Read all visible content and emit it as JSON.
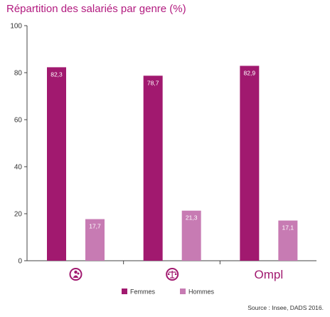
{
  "title": "Répartition des salariés par genre (%)",
  "source": "Source : Insee, DADS 2016.",
  "logo_text": "Ompl",
  "icons": [
    "people-circle-icon",
    "scales-of-justice-icon",
    "ompl-logo"
  ],
  "colors": {
    "femmes": "#a1196f",
    "hommes": "#c77bb3",
    "title": "#b21a7f"
  },
  "chart_data": {
    "type": "bar",
    "title": "Répartition des salariés par genre (%)",
    "categories": [
      "",
      "",
      ""
    ],
    "category_icons": [
      "people-circle-icon",
      "scales-of-justice-icon",
      "ompl-logo"
    ],
    "series": [
      {
        "name": "Femmes",
        "values": [
          82.3,
          78.7,
          82.9
        ],
        "labels": [
          "82,3",
          "78,7",
          "82,9"
        ]
      },
      {
        "name": "Hommes",
        "values": [
          17.7,
          21.3,
          17.1
        ],
        "labels": [
          "17,7",
          "21,3",
          "17,1"
        ]
      }
    ],
    "ylim": [
      0,
      100
    ],
    "yticks": [
      "0",
      "20",
      "40",
      "60",
      "80",
      "100"
    ],
    "ytick_values": [
      0,
      20,
      40,
      60,
      80,
      100
    ],
    "grid": false,
    "legend_position": "bottom-center"
  }
}
